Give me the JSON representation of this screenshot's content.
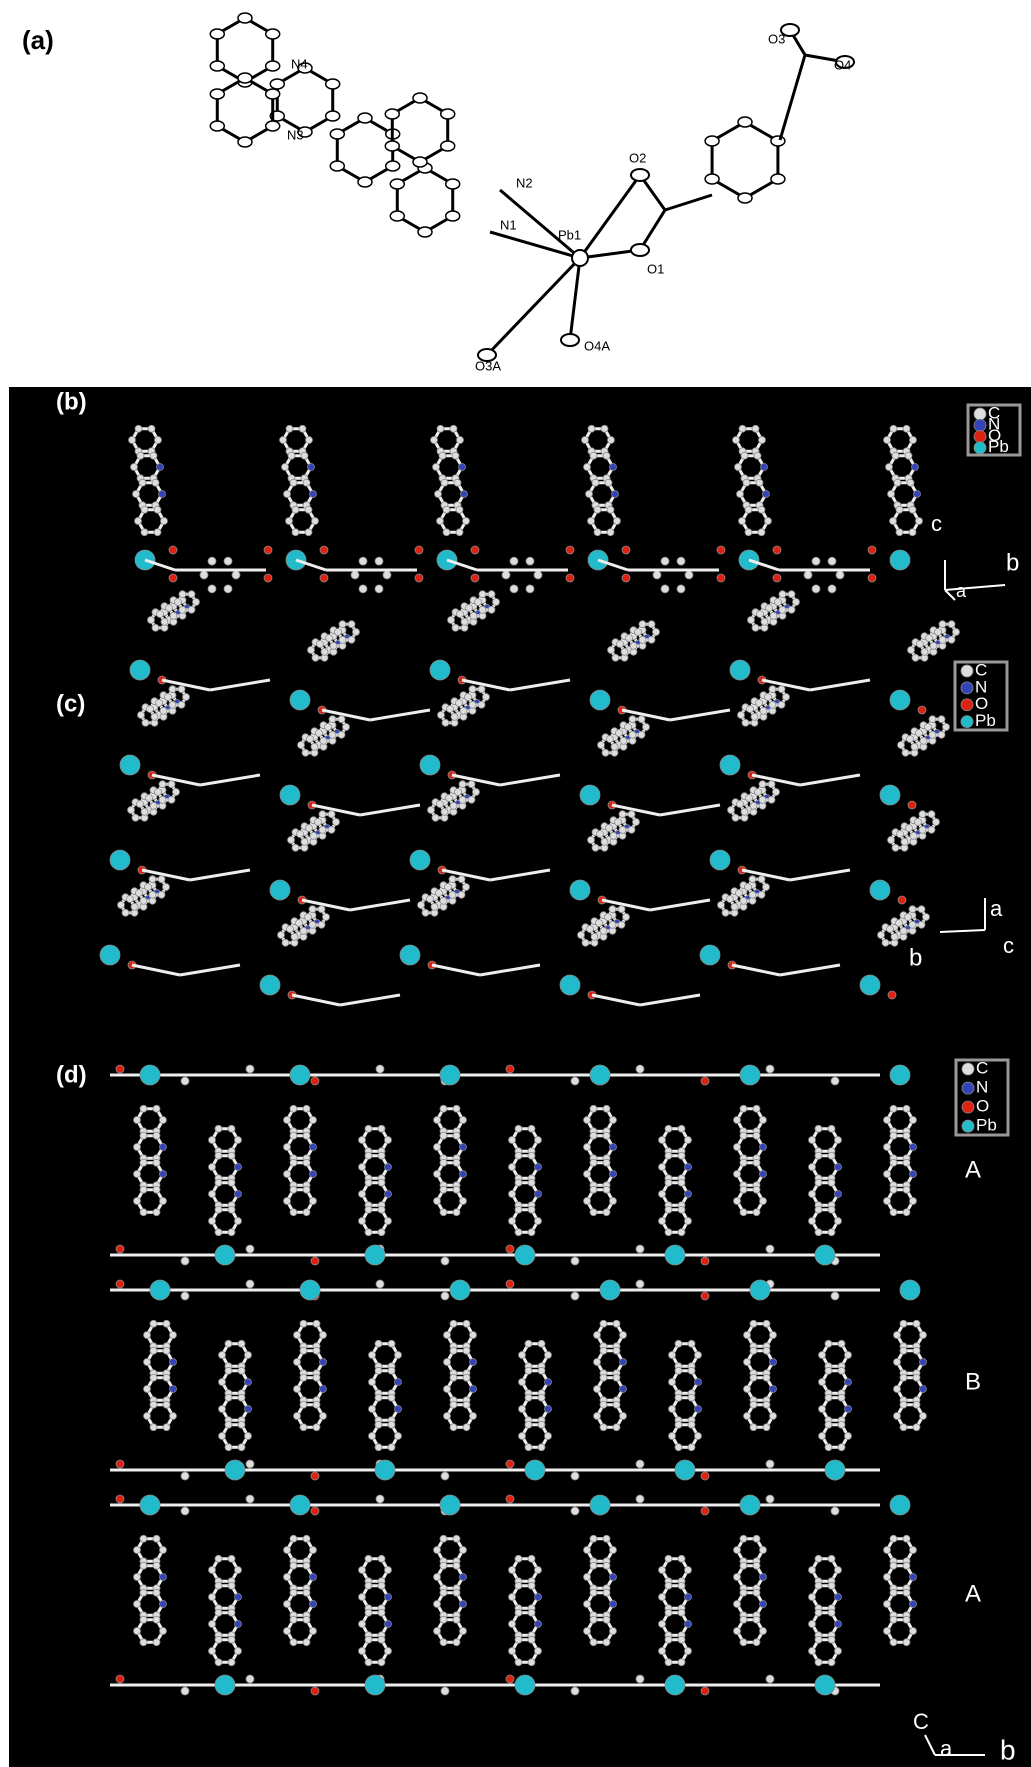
{
  "panels": [
    {
      "label": "(a)",
      "atoms": [
        "N4",
        "N3",
        "N2",
        "N1",
        "Pb1",
        "O2",
        "O1",
        "O3",
        "O4",
        "O3A",
        "O4A"
      ]
    },
    {
      "label": "(b)",
      "legend": [
        "C",
        "N",
        "O",
        "Pb"
      ],
      "axes": [
        "c",
        "b",
        "a"
      ]
    },
    {
      "label": "(c)",
      "legend": [
        "C",
        "N",
        "O",
        "Pb"
      ],
      "axes": [
        "a",
        "c",
        "b"
      ]
    },
    {
      "label": "(d)",
      "legend": [
        "C",
        "N",
        "O",
        "Pb"
      ],
      "layers": [
        "A",
        "B",
        "A"
      ],
      "axes": [
        "C",
        "a",
        "b"
      ]
    }
  ]
}
